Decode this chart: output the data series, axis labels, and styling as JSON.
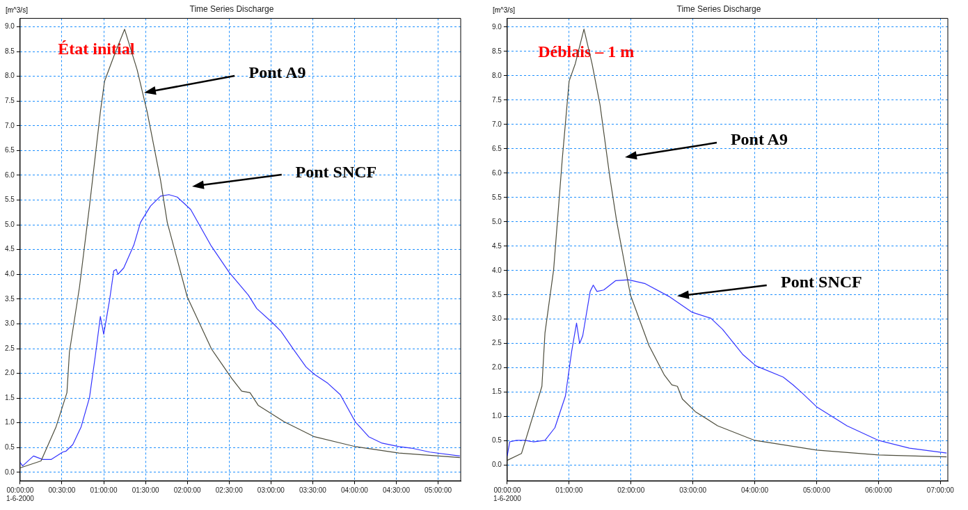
{
  "chart_data": [
    {
      "type": "line",
      "title": "Time Series Discharge",
      "subtitle": "État initial",
      "ylabel": "[m^3/s]",
      "xlim": [
        0,
        5.27
      ],
      "ylim": [
        -0.17,
        9.17
      ],
      "xticks": [
        {
          "value": 0,
          "label": "00:00:00\n1-6-2000"
        },
        {
          "value": 0.5,
          "label": "00:30:00"
        },
        {
          "value": 1,
          "label": "01:00:00"
        },
        {
          "value": 1.5,
          "label": "01:30:00"
        },
        {
          "value": 2,
          "label": "02:00:00"
        },
        {
          "value": 2.5,
          "label": "02:30:00"
        },
        {
          "value": 3,
          "label": "03:00:00"
        },
        {
          "value": 3.5,
          "label": "03:30:00"
        },
        {
          "value": 4,
          "label": "04:00:00"
        },
        {
          "value": 4.5,
          "label": "04:30:00"
        },
        {
          "value": 5,
          "label": "05:00:00"
        }
      ],
      "yticks": [
        {
          "value": 0,
          "label": "0.0"
        },
        0.5,
        {
          "value": 1,
          "label": "1.0"
        },
        1.5,
        {
          "value": 2,
          "label": "2.0"
        },
        2.5,
        {
          "value": 3,
          "label": "3.0"
        },
        3.5,
        {
          "value": 4,
          "label": "4.0"
        },
        4.5,
        {
          "value": 5,
          "label": "5.0"
        },
        5.5,
        {
          "value": 6,
          "label": "6.0"
        },
        6.5,
        {
          "value": 7,
          "label": "7.0"
        },
        7.5,
        {
          "value": 8,
          "label": "8.0"
        },
        8.5,
        {
          "value": 9,
          "label": "9.0"
        }
      ],
      "grid": true,
      "legend": false,
      "marker": "none",
      "line_style": "solid",
      "series": [
        {
          "color": "#4d4d3d",
          "x": [
            0,
            0.25,
            0.43,
            0.56,
            0.59,
            0.71,
            0.83,
            0.96,
            1.01,
            1.12,
            1.25,
            1.4,
            1.52,
            1.68,
            1.76,
            2.0,
            2.29,
            2.53,
            2.65,
            2.75,
            2.85,
            3.16,
            3.52,
            4.01,
            4.53,
            5.26
          ],
          "values": [
            0.09,
            0.23,
            0.92,
            1.61,
            2.43,
            3.74,
            5.38,
            7.28,
            7.9,
            8.4,
            8.95,
            8.13,
            7.28,
            5.9,
            5.05,
            3.54,
            2.49,
            1.9,
            1.64,
            1.61,
            1.35,
            1.02,
            0.72,
            0.52,
            0.39,
            0.3
          ]
        },
        {
          "color": "#3333ff",
          "x": [
            0,
            0.03,
            0.16,
            0.27,
            0.37,
            0.51,
            0.55,
            0.63,
            0.73,
            0.83,
            0.9,
            0.96,
            1.0,
            1.07,
            1.12,
            1.15,
            1.17,
            1.24,
            1.36,
            1.44,
            1.56,
            1.68,
            1.78,
            1.88,
            2.04,
            2.28,
            2.5,
            2.73,
            2.83,
            3.02,
            3.12,
            3.28,
            3.42,
            3.52,
            3.68,
            3.83,
            4.01,
            4.17,
            4.33,
            4.53,
            4.68,
            4.9,
            5.26
          ],
          "values": [
            0.2,
            0.13,
            0.33,
            0.26,
            0.26,
            0.41,
            0.43,
            0.56,
            0.92,
            1.51,
            2.36,
            3.15,
            2.79,
            3.48,
            4.07,
            4.1,
            4.0,
            4.13,
            4.59,
            5.05,
            5.38,
            5.58,
            5.61,
            5.56,
            5.31,
            4.59,
            4.04,
            3.58,
            3.31,
            3.02,
            2.85,
            2.46,
            2.13,
            1.98,
            1.8,
            1.57,
            1.02,
            0.72,
            0.59,
            0.52,
            0.49,
            0.41,
            0.33
          ]
        }
      ],
      "annotations": [
        "Pont A9",
        "Pont SNCF"
      ]
    },
    {
      "type": "line",
      "title": "Time Series Discharge",
      "subtitle": "Déblais – 1 m",
      "ylabel": "[m^3/s]",
      "xlim": [
        0,
        7.12
      ],
      "ylim": [
        -0.32,
        9.18
      ],
      "xticks": [
        {
          "value": 0,
          "label": "00:00:00\n1-6-2000"
        },
        {
          "value": 1,
          "label": "01:00:00"
        },
        {
          "value": 2,
          "label": "02:00:00"
        },
        {
          "value": 3,
          "label": "03:00:00"
        },
        {
          "value": 4,
          "label": "04:00:00"
        },
        {
          "value": 5,
          "label": "05:00:00"
        },
        {
          "value": 6,
          "label": "06:00:00"
        },
        {
          "value": 7,
          "label": "07:00:00"
        }
      ],
      "yticks": [
        {
          "value": 0,
          "label": "0.0"
        },
        0.5,
        {
          "value": 1,
          "label": "1.0"
        },
        1.5,
        {
          "value": 2,
          "label": "2.0"
        },
        2.5,
        {
          "value": 3,
          "label": "3.0"
        },
        3.5,
        {
          "value": 4,
          "label": "4.0"
        },
        4.5,
        {
          "value": 5,
          "label": "5.0"
        },
        5.5,
        {
          "value": 6,
          "label": "6.0"
        },
        6.5,
        {
          "value": 7,
          "label": "7.0"
        },
        7.5,
        {
          "value": 8,
          "label": "8.0"
        },
        8.5,
        {
          "value": 9,
          "label": "9.0"
        }
      ],
      "grid": true,
      "legend": false,
      "marker": "none",
      "line_style": "solid",
      "series": [
        {
          "color": "#4d4d3d",
          "x": [
            0,
            0.23,
            0.42,
            0.56,
            0.61,
            0.75,
            0.89,
            1.0,
            1.1,
            1.24,
            1.37,
            1.5,
            1.66,
            1.77,
            1.99,
            2.29,
            2.54,
            2.66,
            2.75,
            2.83,
            3.04,
            3.4,
            4.0,
            5.0,
            6.0,
            7.1
          ],
          "values": [
            0.1,
            0.24,
            1.03,
            1.62,
            2.72,
            4.02,
            6.3,
            7.89,
            8.25,
            8.96,
            8.25,
            7.4,
            5.9,
            5.0,
            3.5,
            2.46,
            1.85,
            1.65,
            1.62,
            1.36,
            1.1,
            0.81,
            0.51,
            0.31,
            0.21,
            0.17
          ]
        },
        {
          "color": "#3333ff",
          "x": [
            0,
            0.04,
            0.15,
            0.29,
            0.42,
            0.61,
            0.77,
            0.94,
            1.04,
            1.12,
            1.17,
            1.22,
            1.34,
            1.39,
            1.45,
            1.56,
            1.75,
            1.96,
            2.23,
            2.61,
            2.99,
            3.29,
            3.48,
            3.81,
            4.02,
            4.46,
            4.62,
            4.76,
            5.0,
            5.49,
            6.0,
            6.5,
            7.1
          ],
          "values": [
            0.19,
            0.48,
            0.51,
            0.51,
            0.48,
            0.51,
            0.77,
            1.42,
            2.33,
            2.92,
            2.5,
            2.66,
            3.57,
            3.7,
            3.57,
            3.6,
            3.79,
            3.81,
            3.73,
            3.47,
            3.14,
            3.02,
            2.79,
            2.27,
            2.04,
            1.81,
            1.65,
            1.49,
            1.2,
            0.81,
            0.51,
            0.35,
            0.25
          ]
        }
      ],
      "annotations": [
        "Pont A9",
        "Pont SNCF"
      ]
    }
  ]
}
